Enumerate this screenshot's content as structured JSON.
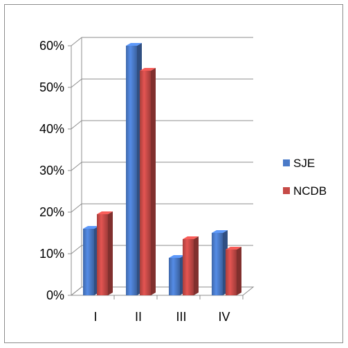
{
  "chart_data": {
    "type": "bar",
    "title": "",
    "xlabel": "",
    "ylabel": "",
    "categories": [
      "I",
      "II",
      "III",
      "IV"
    ],
    "series": [
      {
        "name": "SJE",
        "values": [
          0.16,
          0.6,
          0.09,
          0.15
        ],
        "color": "#4a7ac8"
      },
      {
        "name": "NCDB",
        "values": [
          0.195,
          0.54,
          0.135,
          0.11
        ],
        "color": "#c64a47"
      }
    ],
    "ylim": [
      0,
      0.6
    ],
    "y_ticks": [
      "0%",
      "10%",
      "20%",
      "30%",
      "40%",
      "50%",
      "60%"
    ],
    "grid": true,
    "legend": "right",
    "render_3d": true
  }
}
